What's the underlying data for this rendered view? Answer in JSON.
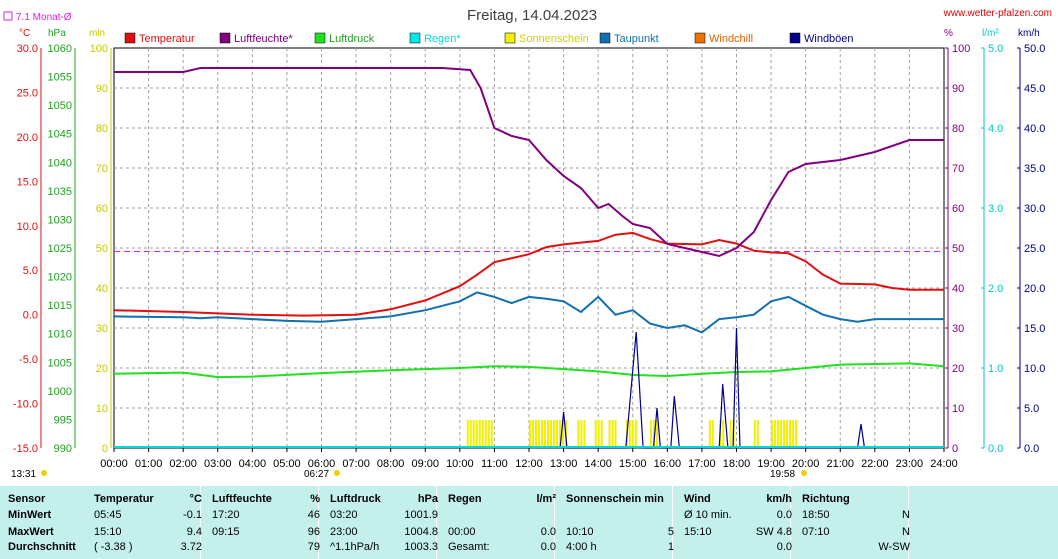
{
  "title": "Freitag, 14.04.2023",
  "site": "www.wetter-pfalzen.com",
  "monthly_avg_label": "7.1 Monat-Ø",
  "colors": {
    "temperature": "#e01010",
    "humidity": "#800080",
    "pressure": "#20e020",
    "rain": "#00d8d8",
    "sunshine": "#f0f000",
    "dewpoint": "#1070b0",
    "windchill": "#f07000",
    "gusts": "#00008b",
    "monthly_avg": "#e020e0"
  },
  "legend": [
    {
      "label": "Temperatur",
      "color": "#e01010",
      "text_color": "#e01010"
    },
    {
      "label": "Luftfeuchte*",
      "color": "#800080",
      "text_color": "#800080"
    },
    {
      "label": "Luftdruck",
      "color": "#20e020",
      "text_color": "#20a020"
    },
    {
      "label": "Regen*",
      "color": "#00e8e8",
      "text_color": "#00d8d8"
    },
    {
      "label": "Sonnenschein",
      "color": "#f0f000",
      "text_color": "#d0d000"
    },
    {
      "label": "Taupunkt",
      "color": "#1070b0",
      "text_color": "#1070b0"
    },
    {
      "label": "Windchill",
      "color": "#f07000",
      "text_color": "#e06000"
    },
    {
      "label": "Windböen",
      "color": "#00008b",
      "text_color": "#00008b"
    }
  ],
  "axes": {
    "temp": {
      "unit": "°C",
      "ticks": [
        "30.0",
        "25.0",
        "20.0",
        "15.0",
        "10.0",
        "5.0",
        "0.0",
        "-5.0",
        "-10.0",
        "-15.0"
      ],
      "range": [
        -15,
        30
      ]
    },
    "pressure": {
      "unit": "hPa",
      "ticks": [
        "1060",
        "1055",
        "1050",
        "1045",
        "1040",
        "1035",
        "1030",
        "1025",
        "1020",
        "1015",
        "1010",
        "1005",
        "1000",
        "995",
        "990"
      ],
      "range": [
        990,
        1060
      ]
    },
    "sunshine": {
      "unit": "min",
      "ticks": [
        "100",
        "90",
        "80",
        "70",
        "60",
        "50",
        "40",
        "30",
        "20",
        "10",
        "0"
      ],
      "range": [
        0,
        100
      ]
    },
    "humidity": {
      "unit": "%",
      "ticks": [
        "100",
        "90",
        "80",
        "70",
        "60",
        "50",
        "40",
        "30",
        "20",
        "10",
        "0"
      ],
      "range": [
        0,
        100
      ]
    },
    "rain": {
      "unit": "l/m²",
      "ticks": [
        "5.0",
        "4.0",
        "3.0",
        "2.0",
        "1.0",
        "0.0"
      ],
      "range": [
        0,
        5
      ]
    },
    "wind": {
      "unit": "km/h",
      "ticks": [
        "50.0",
        "45.0",
        "40.0",
        "35.0",
        "30.0",
        "25.0",
        "20.0",
        "15.0",
        "10.0",
        "5.0",
        "0.0"
      ],
      "range": [
        0,
        50
      ]
    },
    "time": {
      "ticks": [
        "00:00",
        "01:00",
        "02:00",
        "03:00",
        "04:00",
        "05:00",
        "06:00",
        "07:00",
        "08:00",
        "09:00",
        "10:00",
        "11:00",
        "12:00",
        "13:00",
        "14:00",
        "15:00",
        "16:00",
        "17:00",
        "18:00",
        "19:00",
        "20:00",
        "21:00",
        "22:00",
        "23:00",
        "24:00"
      ]
    }
  },
  "sun_times": {
    "sunrise": "06:27",
    "sunset": "19:58",
    "now": "13:31"
  },
  "chart_data": {
    "type": "line",
    "title": "Freitag, 14.04.2023",
    "x_unit": "hours",
    "monthly_avg_temp": 7.1,
    "series": [
      {
        "name": "Temperatur",
        "axis": "temp",
        "points": [
          [
            0,
            0.5
          ],
          [
            2,
            0.3
          ],
          [
            4,
            0.0
          ],
          [
            5.5,
            -0.1
          ],
          [
            7,
            0.0
          ],
          [
            8,
            0.6
          ],
          [
            9,
            1.6
          ],
          [
            10,
            3.2
          ],
          [
            10.5,
            4.5
          ],
          [
            11,
            5.9
          ],
          [
            12,
            6.8
          ],
          [
            12.5,
            7.6
          ],
          [
            13,
            7.9
          ],
          [
            14,
            8.3
          ],
          [
            14.5,
            9.0
          ],
          [
            15,
            9.2
          ],
          [
            15.5,
            8.5
          ],
          [
            16,
            8.0
          ],
          [
            17,
            7.9
          ],
          [
            17.5,
            8.4
          ],
          [
            18,
            8.0
          ],
          [
            18.5,
            7.2
          ],
          [
            19,
            7.0
          ],
          [
            19.5,
            6.9
          ],
          [
            20,
            6.0
          ],
          [
            20.5,
            4.5
          ],
          [
            21,
            3.5
          ],
          [
            22,
            3.4
          ],
          [
            22.5,
            3.0
          ],
          [
            23,
            2.8
          ],
          [
            24,
            2.8
          ]
        ]
      },
      {
        "name": "Luftfeuchte*",
        "axis": "humidity",
        "points": [
          [
            0,
            94
          ],
          [
            2,
            94
          ],
          [
            2.5,
            95
          ],
          [
            4,
            95
          ],
          [
            9,
            95
          ],
          [
            9.5,
            95
          ],
          [
            10.3,
            94.5
          ],
          [
            10.6,
            90
          ],
          [
            11,
            80
          ],
          [
            11.5,
            78
          ],
          [
            12,
            77
          ],
          [
            12.5,
            72
          ],
          [
            13,
            68
          ],
          [
            13.5,
            65
          ],
          [
            14,
            60
          ],
          [
            14.3,
            61
          ],
          [
            14.7,
            58
          ],
          [
            15,
            56
          ],
          [
            15.5,
            55
          ],
          [
            16,
            51
          ],
          [
            16.5,
            50
          ],
          [
            17,
            49
          ],
          [
            17.5,
            48
          ],
          [
            18,
            50
          ],
          [
            18.5,
            54
          ],
          [
            19,
            62
          ],
          [
            19.5,
            69
          ],
          [
            20,
            71
          ],
          [
            21,
            72
          ],
          [
            22,
            74
          ],
          [
            23,
            77
          ],
          [
            24,
            77
          ]
        ]
      },
      {
        "name": "Luftdruck",
        "axis": "pressure",
        "points": [
          [
            0,
            1003.0
          ],
          [
            2,
            1003.2
          ],
          [
            3,
            1002.4
          ],
          [
            4,
            1002.5
          ],
          [
            5,
            1002.8
          ],
          [
            6,
            1003.1
          ],
          [
            8,
            1003.6
          ],
          [
            10,
            1004.0
          ],
          [
            11,
            1004.3
          ],
          [
            12,
            1004.2
          ],
          [
            13,
            1003.8
          ],
          [
            14,
            1003.4
          ],
          [
            15,
            1002.8
          ],
          [
            16,
            1002.6
          ],
          [
            17,
            1003.0
          ],
          [
            18,
            1003.3
          ],
          [
            19,
            1003.4
          ],
          [
            20,
            1004.0
          ],
          [
            21,
            1004.6
          ],
          [
            22,
            1004.7
          ],
          [
            23,
            1004.8
          ],
          [
            24,
            1004.3
          ]
        ]
      },
      {
        "name": "Taupunkt",
        "axis": "temp",
        "points": [
          [
            0,
            -0.2
          ],
          [
            2,
            -0.3
          ],
          [
            2.5,
            -0.4
          ],
          [
            3,
            -0.3
          ],
          [
            4,
            -0.5
          ],
          [
            5,
            -0.7
          ],
          [
            6,
            -0.8
          ],
          [
            7,
            -0.5
          ],
          [
            8,
            -0.2
          ],
          [
            9,
            0.5
          ],
          [
            10,
            1.5
          ],
          [
            10.5,
            2.5
          ],
          [
            11,
            2.0
          ],
          [
            11.5,
            1.3
          ],
          [
            12,
            2.0
          ],
          [
            12.5,
            1.8
          ],
          [
            13,
            1.5
          ],
          [
            13.5,
            0.3
          ],
          [
            14,
            2.0
          ],
          [
            14.5,
            0.0
          ],
          [
            15,
            0.5
          ],
          [
            15.5,
            -1.0
          ],
          [
            16,
            -1.5
          ],
          [
            16.5,
            -1.2
          ],
          [
            17,
            -2.0
          ],
          [
            17.5,
            -0.5
          ],
          [
            18,
            -0.3
          ],
          [
            18.5,
            0.0
          ],
          [
            19,
            1.5
          ],
          [
            19.5,
            2.0
          ],
          [
            20,
            1.0
          ],
          [
            20.5,
            0.0
          ],
          [
            21,
            -0.5
          ],
          [
            21.5,
            -0.8
          ],
          [
            22,
            -0.5
          ],
          [
            23,
            -0.5
          ],
          [
            24,
            -0.5
          ]
        ]
      },
      {
        "name": "Windböen",
        "axis": "wind",
        "points": [
          [
            12.9,
            0
          ],
          [
            13.0,
            4.5
          ],
          [
            13.1,
            0
          ],
          [
            14.8,
            0
          ],
          [
            15.1,
            14.5
          ],
          [
            15.3,
            0
          ],
          [
            15.6,
            0
          ],
          [
            15.7,
            5
          ],
          [
            15.8,
            0
          ],
          [
            16.1,
            0
          ],
          [
            16.2,
            6.5
          ],
          [
            16.35,
            0
          ],
          [
            17.5,
            0
          ],
          [
            17.6,
            8
          ],
          [
            17.75,
            0
          ],
          [
            17.9,
            0
          ],
          [
            18.0,
            15
          ],
          [
            18.1,
            0
          ],
          [
            21.5,
            0
          ],
          [
            21.6,
            3
          ],
          [
            21.7,
            0
          ]
        ]
      },
      {
        "name": "Sonnenschein",
        "axis": "sunshine",
        "bars": [
          [
            10.2,
            10.9
          ],
          [
            12.0,
            13.1
          ],
          [
            13.4,
            13.6
          ],
          [
            13.9,
            14.1
          ],
          [
            14.3,
            14.5
          ],
          [
            14.8,
            15.1
          ],
          [
            15.5,
            15.7
          ],
          [
            17.2,
            17.3
          ],
          [
            17.5,
            17.6
          ],
          [
            17.8,
            17.9
          ],
          [
            18.5,
            18.6
          ],
          [
            19.0,
            19.7
          ]
        ]
      }
    ]
  },
  "table": {
    "row_labels": [
      "Sensor",
      "MinWert",
      "MaxWert",
      "Durchschnitt"
    ],
    "sections": [
      {
        "h1": "Temperatur",
        "h2": "°C",
        "rows": [
          [
            "05:45",
            "-0.1"
          ],
          [
            "15:10",
            "9.4"
          ],
          [
            "( -3.38 )",
            "3.72"
          ]
        ]
      },
      {
        "h1": "Luftfeuchte",
        "h2": "%",
        "rows": [
          [
            "17:20",
            "46"
          ],
          [
            "09:15",
            "96"
          ],
          [
            "",
            "79"
          ]
        ]
      },
      {
        "h1": "Luftdruck",
        "h2": "hPa",
        "rows": [
          [
            "03:20",
            "1001.9"
          ],
          [
            "23:00",
            "1004.8"
          ],
          [
            "^1.1hPa/h",
            "1003.3"
          ]
        ]
      },
      {
        "h1": "Regen",
        "h2": "l/m²",
        "rows": [
          [
            "",
            ""
          ],
          [
            "00:00",
            "0.0"
          ],
          [
            "Gesamt:",
            "0.0"
          ]
        ]
      },
      {
        "h1": "Sonnenschein min",
        "h2": "",
        "rows": [
          [
            "",
            ""
          ],
          [
            "10:10",
            "5"
          ],
          [
            "4:00 h",
            "1"
          ]
        ]
      },
      {
        "h1": "Wind",
        "h2": "km/h",
        "rows": [
          [
            "Ø 10 min.",
            "0.0"
          ],
          [
            "15:10",
            "SW 4.8"
          ],
          [
            "",
            "0.0"
          ]
        ]
      },
      {
        "h1": "Richtung",
        "h2": "",
        "rows": [
          [
            "18:50",
            "N"
          ],
          [
            "07:10",
            "N"
          ],
          [
            "",
            "W-SW"
          ]
        ]
      }
    ]
  }
}
